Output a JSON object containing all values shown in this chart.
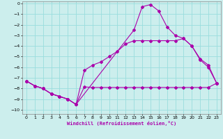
{
  "xlabel": "Windchill (Refroidissement éolien,°C)",
  "bg_color": "#cceeed",
  "grid_color": "#99dddd",
  "line_color": "#aa00aa",
  "xlim": [
    -0.5,
    23.5
  ],
  "ylim": [
    -10.4,
    0.2
  ],
  "xticks": [
    0,
    1,
    2,
    3,
    4,
    5,
    6,
    7,
    8,
    9,
    10,
    11,
    12,
    13,
    14,
    15,
    16,
    17,
    18,
    19,
    20,
    21,
    22,
    23
  ],
  "yticks": [
    0,
    -1,
    -2,
    -3,
    -4,
    -5,
    -6,
    -7,
    -8,
    -9,
    -10
  ],
  "line1_x": [
    0,
    1,
    2,
    3,
    4,
    5,
    6,
    7,
    8,
    9,
    10,
    11,
    12,
    13,
    14,
    15,
    16,
    17,
    18,
    19,
    20,
    21,
    22,
    23
  ],
  "line1_y": [
    -7.3,
    -7.75,
    -8.0,
    -8.5,
    -8.75,
    -9.0,
    -9.5,
    -7.85,
    -7.9,
    -7.9,
    -7.9,
    -7.9,
    -7.9,
    -7.9,
    -7.9,
    -7.9,
    -7.9,
    -7.9,
    -7.9,
    -7.9,
    -7.9,
    -7.9,
    -7.9,
    -7.5
  ],
  "line2_x": [
    0,
    1,
    2,
    3,
    4,
    5,
    6,
    7,
    8,
    9,
    10,
    11,
    12,
    13,
    14,
    15,
    16,
    17,
    18,
    19,
    20,
    21,
    22,
    23
  ],
  "line2_y": [
    -7.3,
    -7.75,
    -8.0,
    -8.5,
    -8.75,
    -9.0,
    -9.5,
    -6.3,
    -5.8,
    -5.5,
    -5.0,
    -4.5,
    -3.8,
    -3.5,
    -3.5,
    -3.5,
    -3.5,
    -3.5,
    -3.5,
    -3.3,
    -4.0,
    -5.2,
    -5.8,
    -7.5
  ],
  "line3_x": [
    0,
    1,
    2,
    3,
    4,
    5,
    6,
    13,
    14,
    15,
    16,
    17,
    18,
    19,
    20,
    21,
    22,
    23
  ],
  "line3_y": [
    -7.3,
    -7.75,
    -8.0,
    -8.5,
    -8.75,
    -9.0,
    -9.5,
    -2.5,
    -0.3,
    -0.1,
    -0.7,
    -2.2,
    -3.0,
    -3.3,
    -4.0,
    -5.3,
    -6.0,
    -7.5
  ]
}
